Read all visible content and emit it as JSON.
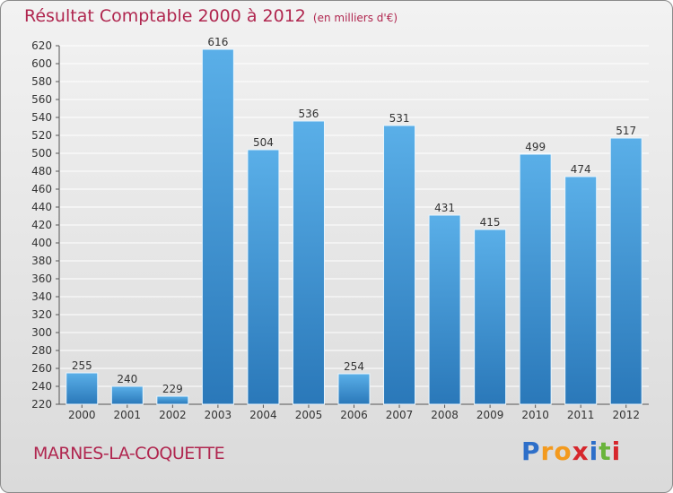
{
  "title": "Résultat Comptable 2000 à 2012",
  "subtitle": "(en milliers d'€)",
  "commune": "MARNES-LA-COQUETTE",
  "logo": {
    "letters": [
      "P",
      "r",
      "o",
      "x",
      "i",
      "t",
      "i"
    ],
    "colors": [
      "#2e6fc9",
      "#f39a1e",
      "#f39a1e",
      "#d6272d",
      "#2e6fc9",
      "#6ab43c",
      "#d6272d"
    ]
  },
  "colors": {
    "bar_light": "#5aafe8",
    "bar_dark": "#2a78b9",
    "title": "#b0264f",
    "grid": "#ffffff"
  },
  "chart_data": {
    "type": "bar",
    "title": "Résultat Comptable 2000 à 2012",
    "subtitle": "(en milliers d'€)",
    "xlabel": "",
    "ylabel": "",
    "categories": [
      "2000",
      "2001",
      "2002",
      "2003",
      "2004",
      "2005",
      "2006",
      "2007",
      "2008",
      "2009",
      "2010",
      "2011",
      "2012"
    ],
    "values": [
      255,
      240,
      229,
      616,
      504,
      536,
      254,
      531,
      431,
      415,
      499,
      474,
      517
    ],
    "ylim": [
      220,
      620
    ],
    "yticks": [
      220,
      240,
      260,
      280,
      300,
      320,
      340,
      360,
      380,
      400,
      420,
      440,
      460,
      480,
      500,
      520,
      540,
      560,
      580,
      600,
      620
    ],
    "grid": true,
    "legend": "none"
  }
}
